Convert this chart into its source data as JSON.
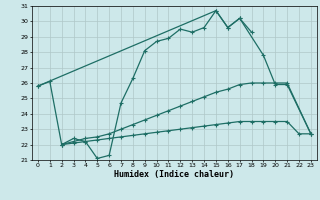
{
  "xlabel": "Humidex (Indice chaleur)",
  "xlim": [
    -0.5,
    23.5
  ],
  "ylim": [
    21,
    31
  ],
  "yticks": [
    21,
    22,
    23,
    24,
    25,
    26,
    27,
    28,
    29,
    30,
    31
  ],
  "xticks": [
    0,
    1,
    2,
    3,
    4,
    5,
    6,
    7,
    8,
    9,
    10,
    11,
    12,
    13,
    14,
    15,
    16,
    17,
    18,
    19,
    20,
    21,
    22,
    23
  ],
  "bg_color": "#cde8ea",
  "line_color": "#1e6e65",
  "grid_color": "#b0c8c8",
  "line1_x": [
    0,
    1,
    2,
    3,
    4,
    5,
    6,
    7,
    8,
    9,
    10,
    11,
    12,
    13,
    14,
    15,
    16,
    17,
    18
  ],
  "line1_y": [
    25.8,
    26.1,
    22.0,
    22.4,
    22.2,
    21.1,
    21.3,
    24.7,
    26.3,
    28.1,
    28.7,
    28.9,
    29.5,
    29.3,
    29.6,
    30.7,
    29.6,
    30.2,
    29.3
  ],
  "line2_x": [
    0,
    15,
    16,
    17,
    19,
    20,
    21,
    23
  ],
  "line2_y": [
    25.8,
    30.7,
    29.6,
    30.2,
    27.8,
    25.9,
    25.9,
    22.7
  ],
  "line3_x": [
    2,
    3,
    4,
    5,
    6,
    7,
    8,
    9,
    10,
    11,
    12,
    13,
    14,
    15,
    16,
    17,
    18,
    19,
    20,
    21,
    23
  ],
  "line3_y": [
    22.0,
    22.2,
    22.4,
    22.5,
    22.7,
    23.0,
    23.3,
    23.6,
    23.9,
    24.2,
    24.5,
    24.8,
    25.1,
    25.4,
    25.6,
    25.9,
    26.0,
    26.0,
    26.0,
    26.0,
    22.7
  ],
  "line4_x": [
    2,
    3,
    4,
    5,
    6,
    7,
    8,
    9,
    10,
    11,
    12,
    13,
    14,
    15,
    16,
    17,
    18,
    19,
    20,
    21,
    22,
    23
  ],
  "line4_y": [
    22.0,
    22.1,
    22.2,
    22.3,
    22.4,
    22.5,
    22.6,
    22.7,
    22.8,
    22.9,
    23.0,
    23.1,
    23.2,
    23.3,
    23.4,
    23.5,
    23.5,
    23.5,
    23.5,
    23.5,
    22.7,
    22.7
  ]
}
